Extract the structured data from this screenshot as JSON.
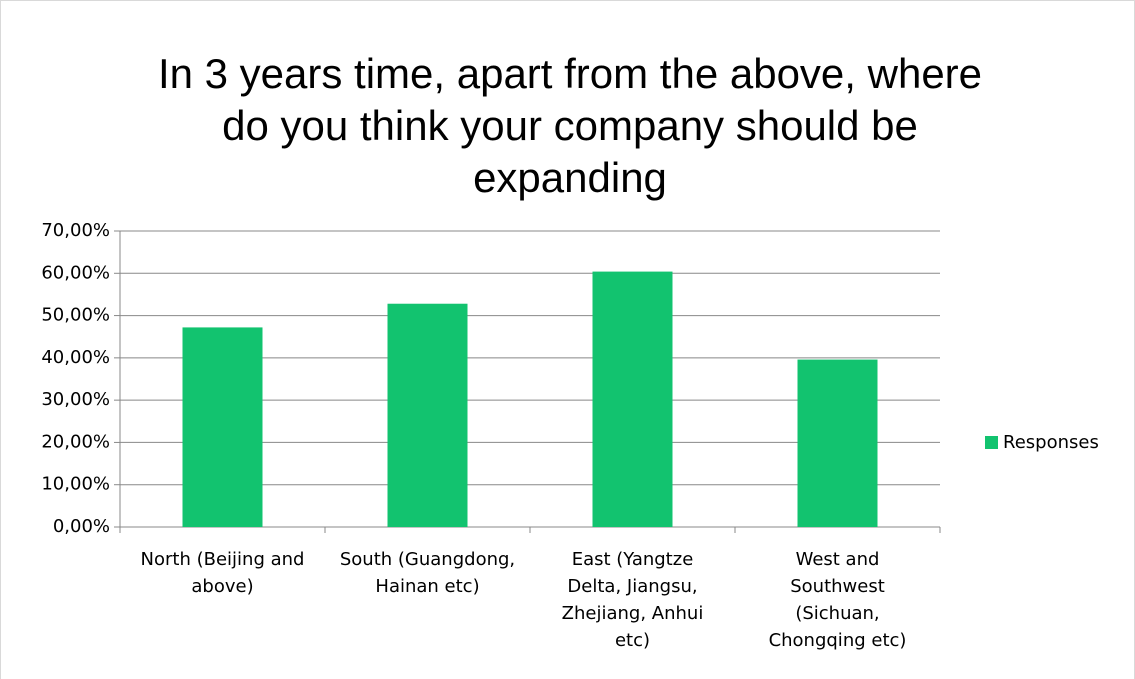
{
  "chart_data": {
    "type": "bar",
    "title": "In 3 years time, apart from the above, where do you think your company should be expanding",
    "categories": [
      "North (Beijing and above)",
      "South (Guangdong, Hainan etc)",
      "East (Yangtze Delta, Jiangsu, Zhejiang, Anhui etc)",
      "West and Southwest (Sichuan, Chongqing etc)"
    ],
    "series": [
      {
        "name": "Responses",
        "color": "#12c36f",
        "values": [
          47.2,
          52.8,
          60.4,
          39.6
        ]
      }
    ],
    "ylim": [
      0,
      70
    ],
    "yticks": [
      {
        "value": 0,
        "label": "0,00%"
      },
      {
        "value": 10,
        "label": "10,00%"
      },
      {
        "value": 20,
        "label": "20,00%"
      },
      {
        "value": 30,
        "label": "30,00%"
      },
      {
        "value": 40,
        "label": "40,00%"
      },
      {
        "value": 50,
        "label": "50,00%"
      },
      {
        "value": 60,
        "label": "60,00%"
      },
      {
        "value": 70,
        "label": "70,00%"
      }
    ],
    "grid": true,
    "legend": "right"
  }
}
